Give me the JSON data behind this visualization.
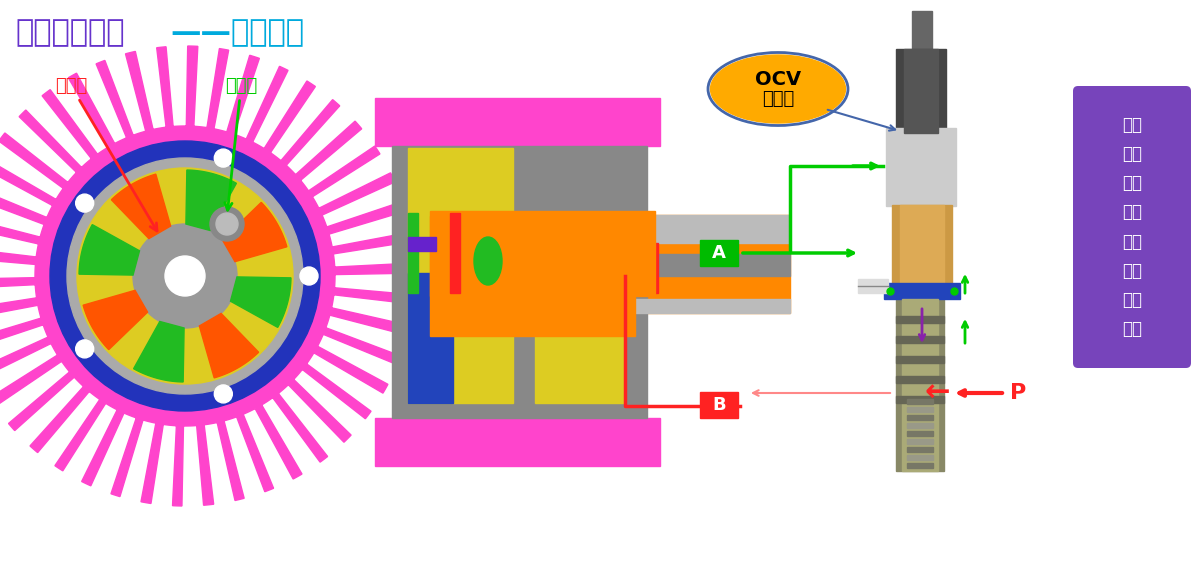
{
  "title_part1": "系统设计结构",
  "title_part2": "——油路设计",
  "title_color1": "#6633CC",
  "title_color2": "#00AADD",
  "title_fontsize": 22,
  "bg_color": "#FFFFFF",
  "label_advance": "提前腔",
  "label_advance_color": "#FF2222",
  "label_retard": "滞后腔",
  "label_retard_color": "#00CC00",
  "ocv_label_line1": "OCV",
  "ocv_label_line2": "通电流",
  "ocv_bubble_color": "#FFAA00",
  "ocv_bubble_edge": "#4466AA",
  "right_box_text": "电磁\n力克\n服弹\n簧力\n推动\n阀芯\n向下\n运动",
  "right_box_color": "#7744BB",
  "right_box_text_color": "#FFFFFF",
  "label_A": "A",
  "label_A_bg": "#00BB00",
  "label_B": "B",
  "label_B_bg": "#FF2222",
  "label_P": "P",
  "label_P_color": "#FF2222",
  "arrow_A_color": "#00CC00",
  "arrow_B_color": "#FF2222",
  "arrow_green_color": "#00CC00",
  "arrow_pink_color": "#FF8888"
}
